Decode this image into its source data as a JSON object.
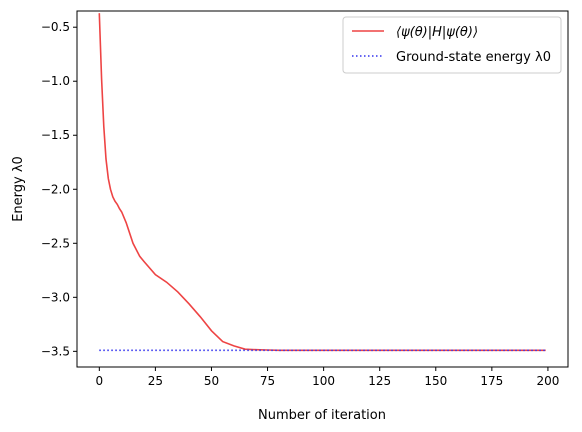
{
  "chart_data": {
    "type": "line",
    "title": "",
    "xlabel": "Number of iteration",
    "ylabel": "Energy λ0",
    "xlim": [
      -9.95,
      208.95
    ],
    "ylim": [
      -3.645,
      -0.35
    ],
    "xticks": [
      0,
      25,
      50,
      75,
      100,
      125,
      150,
      175,
      200
    ],
    "yticks": [
      -0.5,
      -1.0,
      -1.5,
      -2.0,
      -2.5,
      -3.0,
      -3.5
    ],
    "xtick_labels": [
      "0",
      "25",
      "50",
      "75",
      "100",
      "125",
      "150",
      "175",
      "200"
    ],
    "ytick_labels": [
      "−0.5",
      "−1.0",
      "−1.5",
      "−2.0",
      "−2.5",
      "−3.0",
      "−3.5"
    ],
    "grid": false,
    "legend": "upper right",
    "series": [
      {
        "name": "⟨ψ(θ)|H|ψ(θ)⟩",
        "color": "#ee4444",
        "style": "solid",
        "x": [
          0,
          1,
          2,
          3,
          4,
          5,
          6,
          7,
          8,
          9,
          10,
          12,
          15,
          18,
          20,
          25,
          30,
          35,
          40,
          45,
          50,
          55,
          60,
          65,
          70,
          75,
          80,
          90,
          100,
          120,
          150,
          175,
          199
        ],
        "y": [
          -0.37,
          -0.98,
          -1.42,
          -1.72,
          -1.9,
          -2.0,
          -2.07,
          -2.11,
          -2.14,
          -2.18,
          -2.21,
          -2.31,
          -2.5,
          -2.62,
          -2.67,
          -2.79,
          -2.86,
          -2.95,
          -3.06,
          -3.18,
          -3.31,
          -3.41,
          -3.45,
          -3.48,
          -3.485,
          -3.488,
          -3.49,
          -3.49,
          -3.49,
          -3.49,
          -3.49,
          -3.49,
          -3.49
        ]
      },
      {
        "name": "Ground-state energy λ0",
        "color": "#3333ee",
        "style": "dotted",
        "x": [
          0,
          199
        ],
        "y": [
          -3.49,
          -3.49
        ]
      }
    ]
  }
}
